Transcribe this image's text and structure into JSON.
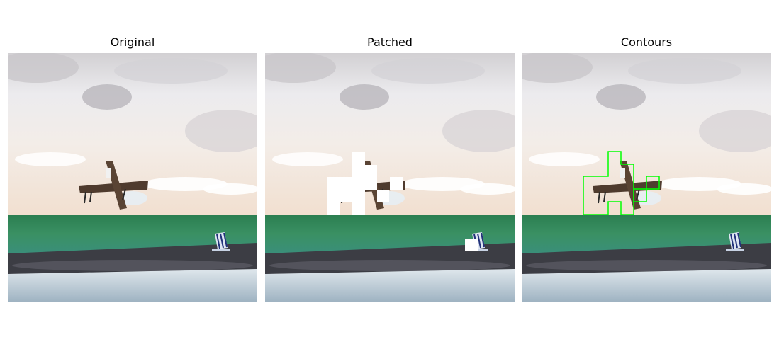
{
  "panels": [
    {
      "id": "original",
      "title": "Original"
    },
    {
      "id": "patched",
      "title": "Patched"
    },
    {
      "id": "contours",
      "title": "Contours"
    }
  ],
  "colors": {
    "background": "#ffffff",
    "sky_top": "#d7d5d7",
    "sky_mid": "#f0eef0",
    "sky_horizon": "#f2e3d6",
    "field_green": "#2f8a5a",
    "soil": "#3e3e44",
    "runway": "#c9d6df",
    "mask": "#ffffff",
    "contour": "#00ff00",
    "aircraft_body": "#5a4434",
    "chair_stripes": "#22327a"
  },
  "icons": [
    "aircraft-drone",
    "beach-chair"
  ]
}
